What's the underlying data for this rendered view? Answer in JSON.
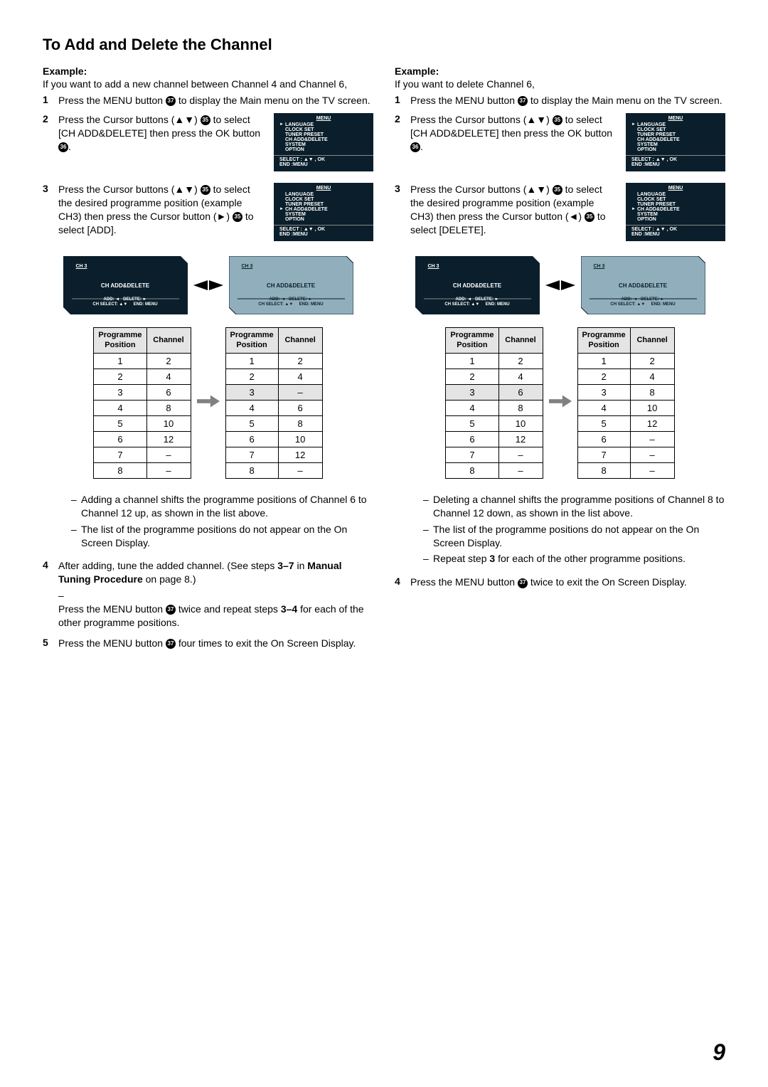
{
  "title": "To Add and Delete the Channel",
  "left": {
    "example": "Example:",
    "intro": "If you want to add a new channel between Channel 4 and Channel 6,",
    "s1": "Press the MENU button",
    "s1b": "to display the Main menu on the TV screen.",
    "s2a": "Press the Cursor buttons (",
    "s2b": ")",
    "s2c": "to select [CH ADD&DELETE] then press the OK button",
    "s2d": ".",
    "s3a": "Press the Cursor buttons (",
    "s3b": ")",
    "s3c": "to select the desired programme position (example CH3) then press the Cursor button (",
    "s3d": ")",
    "s3e": "to select [ADD].",
    "n1": "Adding a channel shifts the programme positions of Channel 6 to Channel 12 up, as shown in the list above.",
    "n2": "The list of the programme positions do not appear on the On Screen Display.",
    "s4a": "After adding, tune the added channel. (See steps",
    "s4b": "in",
    "s4c": "Manual Tuning Procedure",
    "s4d": "on page 8.)",
    "s4e": "Press the MENU button",
    "s4f": "twice and repeat steps",
    "s4g": "for each of the other programme positions.",
    "s5a": "Press the MENU button",
    "s5b": "four times to exit the On Screen Display."
  },
  "right": {
    "example": "Example:",
    "intro": "If you want to delete Channel 6,",
    "s1a": "Press the MENU button",
    "s1b": "to display the Main menu on the TV screen.",
    "s2a": "Press the Cursor buttons (",
    "s2b": ")",
    "s2c": "to select [CH ADD&DELETE] then press the OK button",
    "s2d": ".",
    "s3a": "Press the Cursor buttons (",
    "s3b": ")",
    "s3c": "to select the desired programme position (example CH3) then press the Cursor button (",
    "s3d": ")",
    "s3e": "to select [DELETE].",
    "n1": "Deleting a channel shifts the programme positions of Channel 8 to Channel 12 down, as shown in the list above.",
    "n2": "The list of the programme positions do not appear on the On Screen Display.",
    "n3a": "Repeat step",
    "n3b": "for each of the other programme positions.",
    "s4a": "Press the MENU button",
    "s4b": "twice to exit the On Screen Display."
  },
  "btn": {
    "b35": "35",
    "b36": "36",
    "b37": "37"
  },
  "menu": {
    "title": "MENU",
    "i1": "LANGUAGE",
    "i2": "CLOCK SET",
    "i3": "TUNER PRESET",
    "i4": "CH ADD&DELETE",
    "i5": "SYSTEM",
    "i6": "OPTION",
    "f1": "SELECT : ▲▼ , OK",
    "f2": "END       :MENU"
  },
  "ch": {
    "ch3": "CH 3",
    "mid": "CH ADD&DELETE",
    "bot": "ADD: ◄   DELETE: ►\nCH SELECT: ▲▼     END: MENU"
  },
  "tbl": {
    "h1": "Programme\nPosition",
    "h2": "Channel",
    "l1": [
      [
        "1",
        "2"
      ],
      [
        "2",
        "4"
      ],
      [
        "3",
        "6"
      ],
      [
        "4",
        "8"
      ],
      [
        "5",
        "10"
      ],
      [
        "6",
        "12"
      ],
      [
        "7",
        "–"
      ],
      [
        "8",
        "–"
      ]
    ],
    "l2": [
      [
        "1",
        "2"
      ],
      [
        "2",
        "4"
      ],
      [
        "3",
        "–"
      ],
      [
        "4",
        "6"
      ],
      [
        "5",
        "8"
      ],
      [
        "6",
        "10"
      ],
      [
        "7",
        "12"
      ],
      [
        "8",
        "–"
      ]
    ],
    "r1": [
      [
        "1",
        "2"
      ],
      [
        "2",
        "4"
      ],
      [
        "3",
        "6"
      ],
      [
        "4",
        "8"
      ],
      [
        "5",
        "10"
      ],
      [
        "6",
        "12"
      ],
      [
        "7",
        "–"
      ],
      [
        "8",
        "–"
      ]
    ],
    "r2": [
      [
        "1",
        "2"
      ],
      [
        "2",
        "4"
      ],
      [
        "3",
        "8"
      ],
      [
        "4",
        "10"
      ],
      [
        "5",
        "12"
      ],
      [
        "6",
        "–"
      ],
      [
        "7",
        "–"
      ],
      [
        "8",
        "–"
      ]
    ],
    "hl_l1": -1,
    "hl_l2": 2,
    "hl_r1": 2,
    "hl_r2": -1
  },
  "steps": {
    "s37": "3–7",
    "s34": "3–4",
    "s3": "3"
  },
  "pagenum": "9",
  "sym": {
    "ud": "▲▼",
    "r": "►",
    "l": "◄"
  }
}
